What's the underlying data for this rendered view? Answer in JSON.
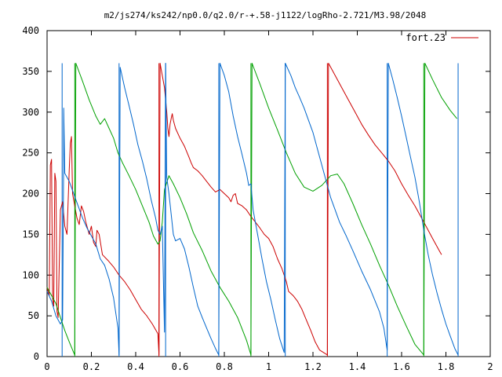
{
  "chart_data": {
    "type": "line",
    "title": "m2/js274/ks242/np0.0/q2.0/r-+.58-j1122/logRho-2.721/M3.98/2048",
    "xlabel": "",
    "ylabel": "",
    "xlim": [
      0,
      2
    ],
    "ylim": [
      0,
      400
    ],
    "xticks": [
      "0",
      "0.2",
      "0.4",
      "0.6",
      "0.8",
      "1",
      "1.2",
      "1.4",
      "1.6",
      "1.8",
      "2"
    ],
    "yticks": [
      "0",
      "50",
      "100",
      "150",
      "200",
      "250",
      "300",
      "350",
      "400"
    ],
    "grid": false,
    "legend": {
      "position": "top-right",
      "entries": [
        "fort.23"
      ]
    },
    "colors": {
      "red": "#cc0000",
      "green": "#00a000",
      "blue": "#0066cc"
    },
    "series": [
      {
        "name": "fort.23",
        "color": "#cc0000",
        "points": [
          [
            0,
            85
          ],
          [
            0.01,
            75
          ],
          [
            0.015,
            235
          ],
          [
            0.02,
            242
          ],
          [
            0.025,
            70
          ],
          [
            0.03,
            62
          ],
          [
            0.035,
            225
          ],
          [
            0.04,
            215
          ],
          [
            0.045,
            55
          ],
          [
            0.05,
            48
          ],
          [
            0.06,
            180
          ],
          [
            0.07,
            190
          ],
          [
            0.08,
            160
          ],
          [
            0.09,
            150
          ],
          [
            0.1,
            230
          ],
          [
            0.105,
            262
          ],
          [
            0.11,
            270
          ],
          [
            0.115,
            200
          ],
          [
            0.125,
            185
          ],
          [
            0.135,
            170
          ],
          [
            0.145,
            162
          ],
          [
            0.155,
            185
          ],
          [
            0.165,
            178
          ],
          [
            0.175,
            165
          ],
          [
            0.19,
            150
          ],
          [
            0.2,
            160
          ],
          [
            0.21,
            140
          ],
          [
            0.22,
            135
          ],
          [
            0.225,
            155
          ],
          [
            0.235,
            150
          ],
          [
            0.25,
            125
          ],
          [
            0.275,
            118
          ],
          [
            0.3,
            110
          ],
          [
            0.325,
            100
          ],
          [
            0.35,
            92
          ],
          [
            0.375,
            82
          ],
          [
            0.4,
            70
          ],
          [
            0.425,
            58
          ],
          [
            0.45,
            50
          ],
          [
            0.475,
            40
          ],
          [
            0.5,
            28
          ],
          [
            0.505,
            2
          ],
          [
            0.51,
            360
          ],
          [
            0.52,
            345
          ],
          [
            0.53,
            330
          ],
          [
            0.54,
            300
          ],
          [
            0.545,
            280
          ],
          [
            0.55,
            270
          ],
          [
            0.555,
            285
          ],
          [
            0.56,
            292
          ],
          [
            0.565,
            298
          ],
          [
            0.57,
            290
          ],
          [
            0.58,
            280
          ],
          [
            0.6,
            268
          ],
          [
            0.62,
            258
          ],
          [
            0.64,
            245
          ],
          [
            0.65,
            238
          ],
          [
            0.66,
            232
          ],
          [
            0.68,
            228
          ],
          [
            0.7,
            222
          ],
          [
            0.72,
            215
          ],
          [
            0.74,
            208
          ],
          [
            0.76,
            202
          ],
          [
            0.78,
            205
          ],
          [
            0.8,
            200
          ],
          [
            0.82,
            195
          ],
          [
            0.83,
            190
          ],
          [
            0.84,
            198
          ],
          [
            0.85,
            200
          ],
          [
            0.86,
            188
          ],
          [
            0.88,
            185
          ],
          [
            0.9,
            180
          ],
          [
            0.92,
            172
          ],
          [
            0.94,
            165
          ],
          [
            0.96,
            158
          ],
          [
            0.98,
            150
          ],
          [
            1.0,
            145
          ],
          [
            1.02,
            135
          ],
          [
            1.04,
            120
          ],
          [
            1.06,
            108
          ],
          [
            1.08,
            92
          ],
          [
            1.09,
            80
          ],
          [
            1.11,
            75
          ],
          [
            1.13,
            68
          ],
          [
            1.15,
            58
          ],
          [
            1.17,
            45
          ],
          [
            1.19,
            32
          ],
          [
            1.21,
            18
          ],
          [
            1.23,
            8
          ],
          [
            1.265,
            2
          ],
          [
            1.27,
            360
          ],
          [
            1.3,
            345
          ],
          [
            1.33,
            330
          ],
          [
            1.36,
            315
          ],
          [
            1.39,
            300
          ],
          [
            1.42,
            285
          ],
          [
            1.45,
            272
          ],
          [
            1.48,
            260
          ],
          [
            1.51,
            250
          ],
          [
            1.54,
            240
          ],
          [
            1.57,
            228
          ],
          [
            1.6,
            212
          ],
          [
            1.63,
            198
          ],
          [
            1.66,
            185
          ],
          [
            1.7,
            165
          ],
          [
            1.74,
            145
          ],
          [
            1.77,
            130
          ],
          [
            1.78,
            125
          ]
        ]
      },
      {
        "name": "",
        "color": "#00a000",
        "points": [
          [
            0,
            85
          ],
          [
            0.02,
            75
          ],
          [
            0.04,
            65
          ],
          [
            0.06,
            48
          ],
          [
            0.08,
            32
          ],
          [
            0.1,
            18
          ],
          [
            0.12,
            5
          ],
          [
            0.125,
            2
          ],
          [
            0.13,
            360
          ],
          [
            0.16,
            338
          ],
          [
            0.19,
            315
          ],
          [
            0.22,
            295
          ],
          [
            0.24,
            285
          ],
          [
            0.26,
            292
          ],
          [
            0.28,
            280
          ],
          [
            0.3,
            268
          ],
          [
            0.32,
            250
          ],
          [
            0.34,
            238
          ],
          [
            0.37,
            222
          ],
          [
            0.4,
            205
          ],
          [
            0.43,
            185
          ],
          [
            0.46,
            165
          ],
          [
            0.48,
            148
          ],
          [
            0.5,
            138
          ],
          [
            0.51,
            142
          ],
          [
            0.52,
            165
          ],
          [
            0.53,
            205
          ],
          [
            0.55,
            222
          ],
          [
            0.57,
            212
          ],
          [
            0.6,
            195
          ],
          [
            0.63,
            175
          ],
          [
            0.66,
            152
          ],
          [
            0.7,
            130
          ],
          [
            0.74,
            105
          ],
          [
            0.78,
            85
          ],
          [
            0.82,
            68
          ],
          [
            0.86,
            48
          ],
          [
            0.9,
            20
          ],
          [
            0.92,
            2
          ],
          [
            0.925,
            360
          ],
          [
            0.96,
            335
          ],
          [
            1.0,
            305
          ],
          [
            1.04,
            278
          ],
          [
            1.08,
            250
          ],
          [
            1.12,
            225
          ],
          [
            1.16,
            208
          ],
          [
            1.2,
            203
          ],
          [
            1.24,
            210
          ],
          [
            1.28,
            222
          ],
          [
            1.31,
            224
          ],
          [
            1.34,
            212
          ],
          [
            1.38,
            188
          ],
          [
            1.42,
            162
          ],
          [
            1.46,
            138
          ],
          [
            1.5,
            112
          ],
          [
            1.54,
            88
          ],
          [
            1.58,
            62
          ],
          [
            1.62,
            38
          ],
          [
            1.66,
            15
          ],
          [
            1.7,
            2
          ],
          [
            1.705,
            360
          ],
          [
            1.74,
            340
          ],
          [
            1.78,
            318
          ],
          [
            1.82,
            302
          ],
          [
            1.85,
            292
          ]
        ]
      },
      {
        "name": "",
        "color": "#0066cc",
        "points": [
          [
            0,
            80
          ],
          [
            0.02,
            68
          ],
          [
            0.04,
            50
          ],
          [
            0.06,
            40
          ],
          [
            0.07,
            45
          ],
          [
            0.075,
            250
          ],
          [
            0.075,
            305
          ],
          [
            0.08,
            225
          ],
          [
            0.1,
            215
          ],
          [
            0.12,
            200
          ],
          [
            0.14,
            185
          ],
          [
            0.16,
            170
          ],
          [
            0.18,
            158
          ],
          [
            0.2,
            148
          ],
          [
            0.22,
            138
          ],
          [
            0.24,
            120
          ],
          [
            0.26,
            112
          ],
          [
            0.28,
            95
          ],
          [
            0.3,
            72
          ],
          [
            0.32,
            35
          ],
          [
            0.325,
            2
          ],
          [
            0.33,
            355
          ],
          [
            0.35,
            330
          ],
          [
            0.37,
            308
          ],
          [
            0.39,
            285
          ],
          [
            0.41,
            260
          ],
          [
            0.43,
            240
          ],
          [
            0.45,
            218
          ],
          [
            0.47,
            192
          ],
          [
            0.49,
            170
          ],
          [
            0.5,
            155
          ],
          [
            0.51,
            150
          ],
          [
            0.52,
            160
          ],
          [
            0.53,
            30
          ],
          [
            0.535,
            360
          ],
          [
            0.54,
            220
          ],
          [
            0.55,
            200
          ],
          [
            0.56,
            175
          ],
          [
            0.57,
            150
          ],
          [
            0.58,
            142
          ],
          [
            0.6,
            145
          ],
          [
            0.62,
            132
          ],
          [
            0.64,
            110
          ],
          [
            0.66,
            85
          ],
          [
            0.68,
            62
          ],
          [
            0.7,
            48
          ],
          [
            0.72,
            35
          ],
          [
            0.74,
            22
          ],
          [
            0.76,
            10
          ],
          [
            0.775,
            2
          ],
          [
            0.78,
            360
          ],
          [
            0.8,
            345
          ],
          [
            0.82,
            325
          ],
          [
            0.84,
            295
          ],
          [
            0.86,
            270
          ],
          [
            0.88,
            248
          ],
          [
            0.9,
            225
          ],
          [
            0.91,
            210
          ],
          [
            0.92,
            212
          ],
          [
            0.93,
            180
          ],
          [
            0.95,
            150
          ],
          [
            0.97,
            120
          ],
          [
            0.99,
            92
          ],
          [
            1.01,
            70
          ],
          [
            1.03,
            45
          ],
          [
            1.05,
            22
          ],
          [
            1.07,
            5
          ],
          [
            1.075,
            360
          ],
          [
            1.1,
            345
          ],
          [
            1.12,
            330
          ],
          [
            1.14,
            318
          ],
          [
            1.16,
            305
          ],
          [
            1.18,
            290
          ],
          [
            1.2,
            275
          ],
          [
            1.22,
            255
          ],
          [
            1.24,
            235
          ],
          [
            1.26,
            215
          ],
          [
            1.28,
            195
          ],
          [
            1.3,
            180
          ],
          [
            1.32,
            165
          ],
          [
            1.35,
            148
          ],
          [
            1.38,
            130
          ],
          [
            1.42,
            105
          ],
          [
            1.46,
            82
          ],
          [
            1.5,
            55
          ],
          [
            1.52,
            35
          ],
          [
            1.535,
            8
          ],
          [
            1.54,
            360
          ],
          [
            1.56,
            340
          ],
          [
            1.58,
            318
          ],
          [
            1.6,
            295
          ],
          [
            1.62,
            270
          ],
          [
            1.64,
            245
          ],
          [
            1.66,
            220
          ],
          [
            1.68,
            190
          ],
          [
            1.7,
            155
          ],
          [
            1.72,
            125
          ],
          [
            1.74,
            100
          ],
          [
            1.76,
            78
          ],
          [
            1.78,
            58
          ],
          [
            1.8,
            40
          ],
          [
            1.82,
            25
          ],
          [
            1.84,
            10
          ],
          [
            1.855,
            2
          ]
        ]
      }
    ],
    "vertical_lines": [
      {
        "x": 0.068,
        "color": "#0066cc"
      },
      {
        "x": 0.125,
        "color": "#00a000"
      },
      {
        "x": 0.325,
        "color": "#0066cc"
      },
      {
        "x": 0.505,
        "color": "#cc0000"
      },
      {
        "x": 0.535,
        "color": "#0066cc"
      },
      {
        "x": 0.775,
        "color": "#0066cc"
      },
      {
        "x": 0.92,
        "color": "#00a000"
      },
      {
        "x": 1.075,
        "color": "#0066cc"
      },
      {
        "x": 1.265,
        "color": "#cc0000"
      },
      {
        "x": 1.535,
        "color": "#0066cc"
      },
      {
        "x": 1.7,
        "color": "#00a000"
      },
      {
        "x": 1.855,
        "color": "#0066cc"
      }
    ]
  }
}
